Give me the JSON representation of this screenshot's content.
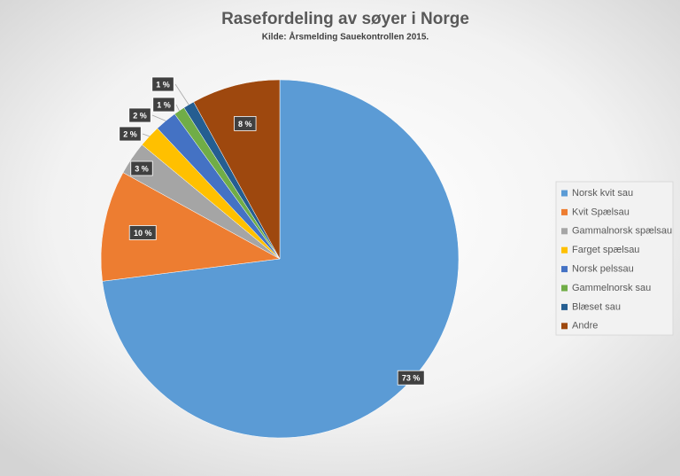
{
  "chart_data": {
    "type": "pie",
    "title": "Rasefordeling av søyer i Norge",
    "subtitle": "Kilde: Årsmelding Sauekontrollen 2015.",
    "categories": [
      "Norsk kvit sau",
      "Kvit Spælsau",
      "Gammalnorsk spælsau",
      "Farget spælsau",
      "Norsk pelssau",
      "Gammelnorsk sau",
      "Blæset sau",
      "Andre"
    ],
    "values": [
      73,
      10,
      3,
      2,
      2,
      1,
      1,
      8
    ],
    "value_labels": [
      "73 %",
      "10 %",
      "3 %",
      "2 %",
      "2 %",
      "1 %",
      "1 %",
      "8 %"
    ],
    "colors": [
      "#5b9bd5",
      "#ed7d31",
      "#a5a5a5",
      "#ffc000",
      "#4472c4",
      "#70ad47",
      "#255e91",
      "#9e480e"
    ],
    "legend": "right"
  }
}
